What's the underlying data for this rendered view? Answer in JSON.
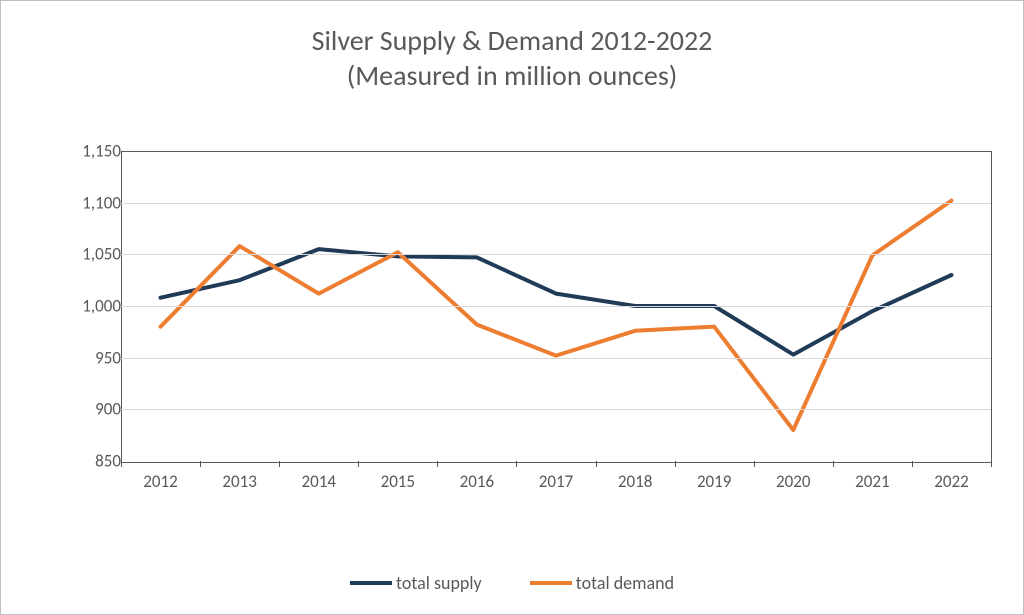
{
  "chart": {
    "type": "line",
    "title_line1": "Silver Supply & Demand 2012-2022",
    "title_line2": "(Measured in million ounces)",
    "title_fontsize": 28,
    "title_color": "#595959",
    "background_color": "#ffffff",
    "border_color": "#bfbfbf",
    "plot_border_color": "#595959",
    "grid_color": "#d9d9d9",
    "label_color": "#595959",
    "label_fontsize": 17,
    "ylim": [
      850,
      1150
    ],
    "ytick_step": 50,
    "yticks": [
      "850",
      "900",
      "950",
      "1,000",
      "1,050",
      "1,100",
      "1,150"
    ],
    "categories": [
      "2012",
      "2013",
      "2014",
      "2015",
      "2016",
      "2017",
      "2018",
      "2019",
      "2020",
      "2021",
      "2022"
    ],
    "line_width": 4,
    "series": [
      {
        "name": "total supply",
        "color": "#1f3b57",
        "values": [
          1008,
          1025,
          1055,
          1048,
          1047,
          1012,
          1000,
          1000,
          953,
          995,
          1030
        ]
      },
      {
        "name": "total demand",
        "color": "#ed7d31",
        "values": [
          980,
          1058,
          1012,
          1052,
          982,
          952,
          976,
          980,
          880,
          1049,
          1102
        ]
      }
    ],
    "legend_fontsize": 18
  }
}
